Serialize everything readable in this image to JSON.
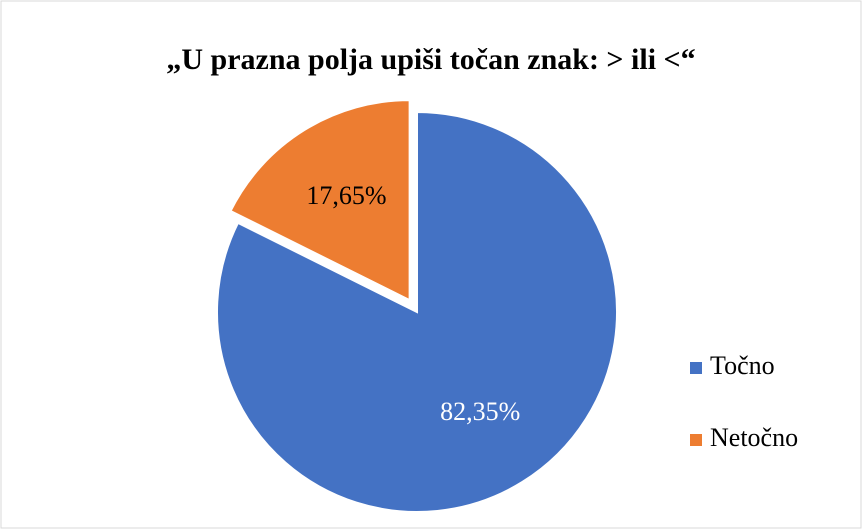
{
  "chart_data": {
    "type": "pie",
    "title": "„U prazna polja upiši točan znak: > ili <“",
    "categories": [
      "Točno",
      "Netočno"
    ],
    "values": [
      82.35,
      17.65
    ],
    "value_labels": [
      "82,35%",
      "17,65%"
    ],
    "colors": [
      "#4472c4",
      "#ed7d31"
    ],
    "legend": "right"
  }
}
